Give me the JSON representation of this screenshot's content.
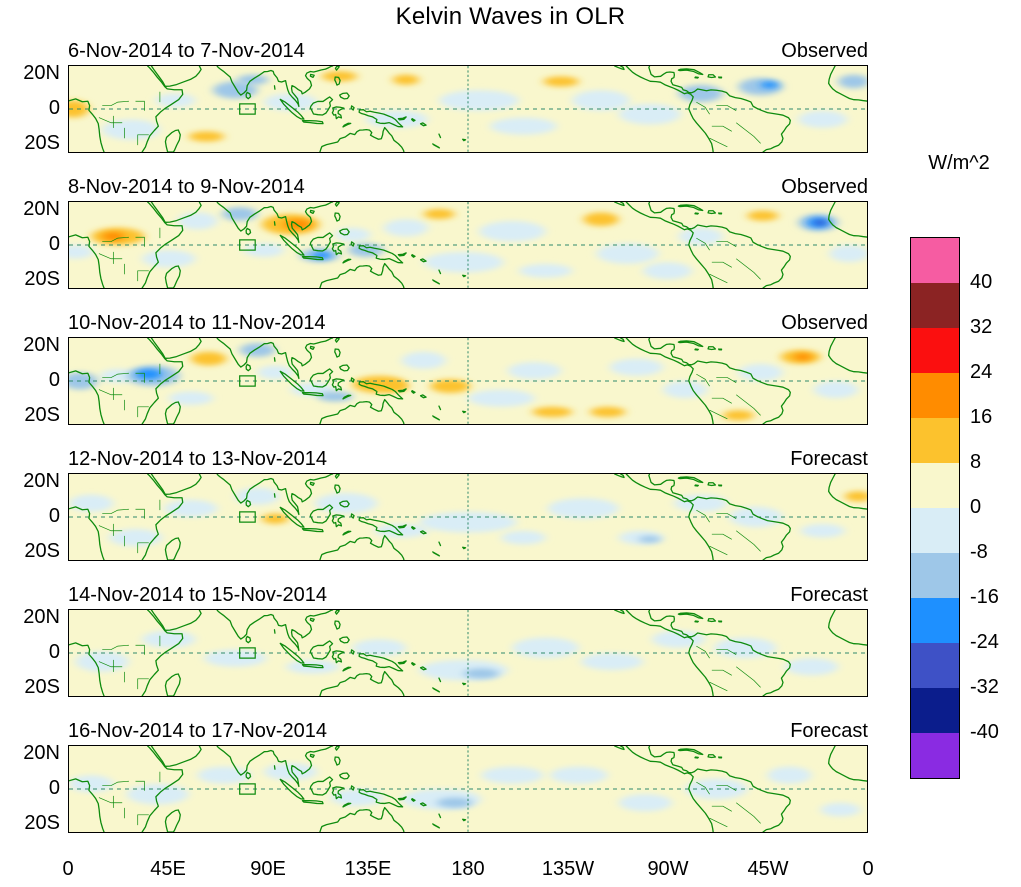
{
  "title": "Kelvin Waves in OLR",
  "chart_data": {
    "type": "heatmap",
    "title": "Kelvin Waves in OLR",
    "units": "W/m^2",
    "x_ticks": [
      "0",
      "45E",
      "90E",
      "135E",
      "180",
      "135W",
      "90W",
      "45W",
      "0"
    ],
    "y_ticks": [
      "20N",
      "0",
      "20S"
    ],
    "lon_range": [
      0,
      360
    ],
    "lat_range": [
      -25,
      25
    ],
    "grid": {
      "equator_dashed": true,
      "dateline_dashed": true,
      "line_color": "#2f8a6a"
    },
    "coastline_color": "#0e8b0e",
    "region_box": {
      "lon_min": 77,
      "lon_max": 84,
      "lat_min": -3,
      "lat_max": 3
    },
    "colorbar": {
      "levels": [
        40,
        32,
        24,
        16,
        8,
        0,
        -8,
        -16,
        -24,
        -32,
        -40
      ],
      "colors_top_to_bottom": [
        "#f65ca2",
        "#8b2323",
        "#fb0f0f",
        "#ff8c00",
        "#fcc22d",
        "#f9f7cc",
        "#d9edf6",
        "#9ec7e8",
        "#1e90ff",
        "#3e51c6",
        "#0b1d8c",
        "#8a2be2"
      ]
    },
    "anomaly_fields": [
      "lon_deg_east",
      "lat_deg",
      "radius_lon_deg",
      "radius_lat_deg",
      "olr_anomaly_wm2"
    ],
    "panels": [
      {
        "date_range": "6-Nov-2014 to 7-Nov-2014",
        "source": "Observed",
        "anomalies": [
          [
            2,
            0,
            7,
            5,
            12
          ],
          [
            48,
            5,
            9,
            4,
            -4
          ],
          [
            28,
            -12,
            13,
            6,
            -4
          ],
          [
            62,
            -16,
            8,
            3,
            12
          ],
          [
            75,
            11,
            10,
            5,
            -12
          ],
          [
            83,
            17,
            7,
            3,
            -12
          ],
          [
            100,
            4,
            12,
            5,
            -4
          ],
          [
            122,
            19,
            8,
            3,
            12
          ],
          [
            152,
            17,
            6,
            3,
            12
          ],
          [
            148,
            -6,
            14,
            5,
            -4
          ],
          [
            185,
            5,
            18,
            6,
            -4
          ],
          [
            205,
            -10,
            15,
            5,
            -4
          ],
          [
            222,
            16,
            8,
            3,
            12
          ],
          [
            240,
            5,
            13,
            6,
            -4
          ],
          [
            262,
            -3,
            14,
            6,
            -4
          ],
          [
            285,
            9,
            10,
            5,
            -12
          ],
          [
            312,
            13,
            10,
            5,
            -12
          ],
          [
            316,
            14,
            4,
            2,
            -20
          ],
          [
            340,
            -6,
            11,
            5,
            -4
          ],
          [
            354,
            16,
            7,
            4,
            -12
          ]
        ]
      },
      {
        "date_range": "8-Nov-2014 to 9-Nov-2014",
        "source": "Observed",
        "anomalies": [
          [
            22,
            5,
            12,
            5,
            12
          ],
          [
            20,
            5,
            5,
            2.5,
            20
          ],
          [
            3,
            -4,
            8,
            4,
            -4
          ],
          [
            45,
            -8,
            12,
            5,
            -4
          ],
          [
            58,
            14,
            9,
            5,
            -4
          ],
          [
            77,
            18,
            8,
            4,
            -12
          ],
          [
            100,
            12,
            13,
            6,
            12
          ],
          [
            103,
            12,
            6,
            3,
            20
          ],
          [
            88,
            -3,
            9,
            4,
            -4
          ],
          [
            113,
            -6,
            9,
            4,
            -12
          ],
          [
            114,
            -6,
            4,
            2,
            -20
          ],
          [
            134,
            -3,
            8,
            4,
            -12
          ],
          [
            128,
            6,
            8,
            4,
            -4
          ],
          [
            152,
            10,
            10,
            5,
            -4
          ],
          [
            167,
            18,
            7,
            3,
            12
          ],
          [
            178,
            -10,
            18,
            6,
            -4
          ],
          [
            200,
            8,
            15,
            6,
            -4
          ],
          [
            215,
            -15,
            12,
            4,
            -4
          ],
          [
            240,
            15,
            8,
            4,
            12
          ],
          [
            252,
            -5,
            14,
            6,
            -4
          ],
          [
            270,
            -15,
            11,
            5,
            -4
          ],
          [
            285,
            5,
            10,
            5,
            -4
          ],
          [
            313,
            17,
            7,
            3,
            12
          ],
          [
            338,
            13,
            9,
            5,
            -12
          ],
          [
            338,
            13,
            5,
            3,
            -20
          ],
          [
            339,
            13,
            2.5,
            1.5,
            -28
          ],
          [
            352,
            -5,
            9,
            5,
            -4
          ]
        ]
      },
      {
        "date_range": "10-Nov-2014 to 11-Nov-2014",
        "source": "Observed",
        "anomalies": [
          [
            5,
            0,
            8,
            5,
            -12
          ],
          [
            22,
            3,
            8,
            4,
            -4
          ],
          [
            38,
            3,
            12,
            6,
            -12
          ],
          [
            36,
            4,
            6,
            3,
            -20
          ],
          [
            55,
            -10,
            10,
            4,
            -4
          ],
          [
            63,
            13,
            8,
            4,
            12
          ],
          [
            85,
            18,
            8,
            4,
            -12
          ],
          [
            93,
            5,
            8,
            4,
            -4
          ],
          [
            110,
            -5,
            10,
            4,
            -4
          ],
          [
            120,
            -9,
            8,
            3,
            -12
          ],
          [
            140,
            -2,
            12,
            5,
            12
          ],
          [
            147,
            -3,
            6,
            3,
            12
          ],
          [
            172,
            -3,
            9,
            4,
            12
          ],
          [
            160,
            12,
            10,
            5,
            -4
          ],
          [
            195,
            -10,
            15,
            5,
            -4
          ],
          [
            210,
            6,
            12,
            5,
            -4
          ],
          [
            218,
            -18,
            9,
            3,
            12
          ],
          [
            243,
            -18,
            8,
            3,
            12
          ],
          [
            256,
            8,
            12,
            5,
            -4
          ],
          [
            278,
            -5,
            10,
            5,
            -4
          ],
          [
            302,
            -20,
            7,
            3,
            12
          ],
          [
            312,
            5,
            10,
            5,
            -4
          ],
          [
            330,
            14,
            9,
            4,
            12
          ],
          [
            331,
            14,
            4,
            2,
            20
          ],
          [
            346,
            -5,
            10,
            5,
            -4
          ]
        ]
      },
      {
        "date_range": "12-Nov-2014 to 13-Nov-2014",
        "source": "Forecast",
        "anomalies": [
          [
            10,
            8,
            10,
            5,
            -4
          ],
          [
            30,
            -12,
            12,
            5,
            -4
          ],
          [
            55,
            5,
            12,
            5,
            -4
          ],
          [
            85,
            12,
            10,
            5,
            -4
          ],
          [
            93,
            -1,
            6,
            3,
            12
          ],
          [
            125,
            8,
            14,
            6,
            -4
          ],
          [
            150,
            -8,
            12,
            4,
            -4
          ],
          [
            180,
            -3,
            22,
            6,
            -4
          ],
          [
            205,
            -12,
            10,
            4,
            -4
          ],
          [
            232,
            5,
            16,
            6,
            -4
          ],
          [
            258,
            -12,
            10,
            4,
            -4
          ],
          [
            262,
            -13,
            5,
            2,
            -12
          ],
          [
            285,
            8,
            12,
            5,
            -4
          ],
          [
            310,
            0,
            12,
            6,
            -4
          ],
          [
            340,
            -8,
            10,
            4,
            -4
          ],
          [
            356,
            12,
            6,
            3,
            12
          ]
        ]
      },
      {
        "date_range": "14-Nov-2014 to 15-Nov-2014",
        "source": "Forecast",
        "anomalies": [
          [
            15,
            -5,
            12,
            6,
            -4
          ],
          [
            45,
            8,
            12,
            5,
            -4
          ],
          [
            75,
            -3,
            14,
            5,
            -4
          ],
          [
            110,
            -8,
            12,
            4,
            -4
          ],
          [
            140,
            3,
            12,
            5,
            -4
          ],
          [
            178,
            -10,
            20,
            6,
            -4
          ],
          [
            186,
            -12,
            8,
            3,
            -12
          ],
          [
            215,
            3,
            15,
            6,
            -4
          ],
          [
            245,
            -5,
            14,
            5,
            -4
          ],
          [
            275,
            8,
            12,
            5,
            -4
          ],
          [
            305,
            3,
            14,
            6,
            -4
          ],
          [
            335,
            -8,
            12,
            5,
            -4
          ]
        ]
      },
      {
        "date_range": "16-Nov-2014 to 17-Nov-2014",
        "source": "Forecast",
        "anomalies": [
          [
            10,
            3,
            10,
            5,
            -4
          ],
          [
            40,
            -3,
            14,
            6,
            -4
          ],
          [
            70,
            8,
            12,
            5,
            -4
          ],
          [
            100,
            10,
            12,
            5,
            -4
          ],
          [
            130,
            -5,
            12,
            5,
            -4
          ],
          [
            168,
            -6,
            18,
            6,
            -4
          ],
          [
            174,
            -8,
            8,
            3,
            -12
          ],
          [
            200,
            8,
            14,
            5,
            -4
          ],
          [
            230,
            8,
            13,
            5,
            -4
          ],
          [
            260,
            -8,
            12,
            5,
            -4
          ],
          [
            292,
            0,
            14,
            6,
            -4
          ],
          [
            325,
            8,
            10,
            5,
            -4
          ],
          [
            348,
            -12,
            9,
            4,
            -4
          ]
        ]
      }
    ]
  }
}
